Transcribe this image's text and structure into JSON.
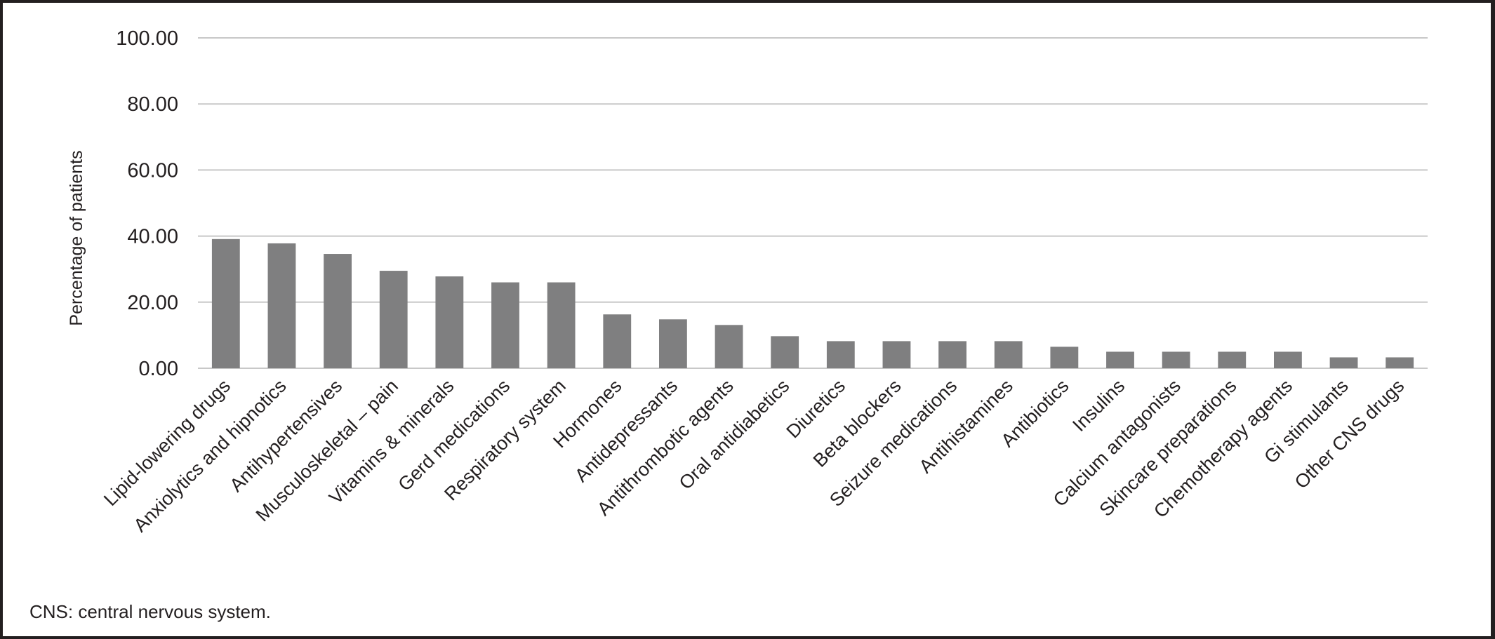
{
  "chart_data": {
    "type": "bar",
    "title": "",
    "xlabel": "",
    "ylabel": "Percentage of patients",
    "ylim": [
      0,
      100
    ],
    "yticks": [
      "0.00",
      "20.00",
      "40.00",
      "60.00",
      "80.00",
      "100.00"
    ],
    "grid": true,
    "bar_color": "#7f7f80",
    "grid_color": "#c8c8c8",
    "categories": [
      "Lipid-lowering drugs",
      "Anxiolytics and hipnotics",
      "Antihypertensives",
      "Musculoskeletal – pain",
      "Vitamins & minerals",
      "Gerd medications",
      "Respiratory system",
      "Hormones",
      "Antidepressants",
      "Antithrombotic agents",
      "Oral antidiabetics",
      "Diuretics",
      "Beta blockers",
      "Seizure medications",
      "Antihistamines",
      "Antibiotics",
      "Insulins",
      "Calcium antagonists",
      "Skincare preparations",
      "Chemotherapy agents",
      "Gi stimulants",
      "Other CNS drugs"
    ],
    "values": [
      39.1,
      37.8,
      34.6,
      29.5,
      27.8,
      26.0,
      26.0,
      16.3,
      14.8,
      13.1,
      9.7,
      8.2,
      8.2,
      8.2,
      8.2,
      6.5,
      5.0,
      5.0,
      5.0,
      5.0,
      3.3,
      3.3
    ]
  },
  "footnote": "CNS: central nervous system."
}
